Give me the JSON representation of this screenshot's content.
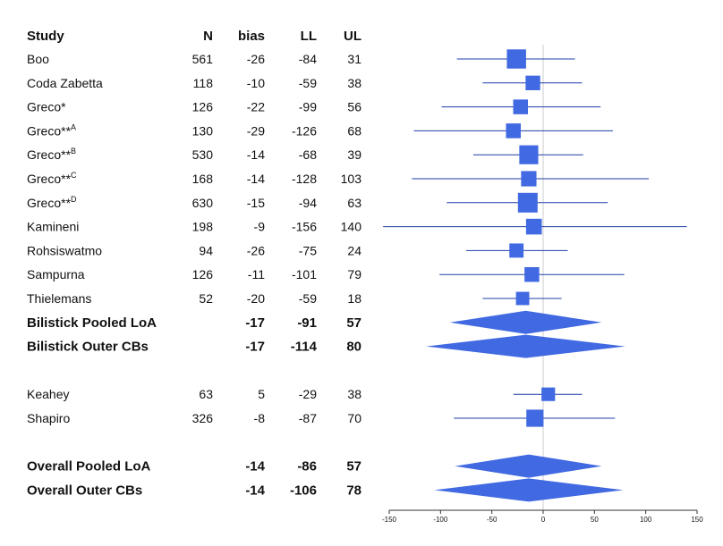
{
  "chart_data": {
    "type": "forest",
    "title": "",
    "xlabel": "",
    "ylabel": "",
    "xlim": [
      -150,
      150
    ],
    "xticks": [
      "-150",
      "-100",
      "-50",
      "0",
      "50",
      "100",
      "150"
    ],
    "reference_line": 0,
    "colors": {
      "marker": "#4169e1",
      "line": "#1f3fa8",
      "ref": "#cccccc"
    },
    "headers": {
      "study": "Study",
      "n": "N",
      "bias": "bias",
      "ll": "LL",
      "ul": "UL"
    },
    "rows": [
      {
        "label": "Boo",
        "sup": "",
        "n": "561",
        "bias": "-26",
        "ll": "-84",
        "ul": "31",
        "kind": "study",
        "pooled_ll": -84,
        "pooled_ul": 31,
        "ci_ll": -84,
        "ci_ul": 31,
        "weight": 561
      },
      {
        "label": "Coda Zabetta",
        "sup": "",
        "n": "118",
        "bias": "-10",
        "ll": "-59",
        "ul": "38",
        "kind": "study",
        "weight": 118
      },
      {
        "label": "Greco*",
        "sup": "",
        "n": "126",
        "bias": "-22",
        "ll": "-99",
        "ul": "56",
        "kind": "study",
        "weight": 126
      },
      {
        "label": "Greco**",
        "sup": "A",
        "n": "130",
        "bias": "-29",
        "ll": "-126",
        "ul": "68",
        "kind": "study",
        "weight": 130
      },
      {
        "label": "Greco**",
        "sup": "B",
        "n": "530",
        "bias": "-14",
        "ll": "-68",
        "ul": "39",
        "kind": "study",
        "weight": 530
      },
      {
        "label": "Greco**",
        "sup": "C",
        "n": "168",
        "bias": "-14",
        "ll": "-128",
        "ul": "103",
        "kind": "study",
        "weight": 168
      },
      {
        "label": "Greco**",
        "sup": "D",
        "n": "630",
        "bias": "-15",
        "ll": "-94",
        "ul": "63",
        "kind": "study",
        "weight": 630
      },
      {
        "label": "Kamineni",
        "sup": "",
        "n": "198",
        "bias": "-9",
        "ll": "-156",
        "ul": "140",
        "kind": "study",
        "weight": 198
      },
      {
        "label": "Rohsiswatmo",
        "sup": "",
        "n": "94",
        "bias": "-26",
        "ll": "-75",
        "ul": "24",
        "kind": "study",
        "weight": 94
      },
      {
        "label": "Sampurna",
        "sup": "",
        "n": "126",
        "bias": "-11",
        "ll": "-101",
        "ul": "79",
        "kind": "study",
        "weight": 126
      },
      {
        "label": "Thielemans",
        "sup": "",
        "n": "52",
        "bias": "-20",
        "ll": "-59",
        "ul": "18",
        "kind": "study",
        "weight": 52
      },
      {
        "label": "Bilistick Pooled LoA",
        "sup": "",
        "n": "",
        "bias": "-17",
        "ll": "-91",
        "ul": "57",
        "kind": "pooled"
      },
      {
        "label": "Bilistick  Outer CBs",
        "sup": "",
        "n": "",
        "bias": "-17",
        "ll": "-114",
        "ul": "80",
        "kind": "pooled"
      },
      {
        "label": "",
        "sup": "",
        "n": "",
        "bias": "",
        "ll": "",
        "ul": "",
        "kind": "spacer"
      },
      {
        "label": "Keahey",
        "sup": "",
        "n": "63",
        "bias": "5",
        "ll": "-29",
        "ul": "38",
        "kind": "study",
        "weight": 63
      },
      {
        "label": "Shapiro",
        "sup": "",
        "n": "326",
        "bias": "-8",
        "ll": "-87",
        "ul": "70",
        "kind": "study",
        "weight": 326
      },
      {
        "label": "",
        "sup": "",
        "n": "",
        "bias": "",
        "ll": "",
        "ul": "",
        "kind": "spacer"
      },
      {
        "label": "Overall Pooled LoA",
        "sup": "",
        "n": "",
        "bias": "-14",
        "ll": "-86",
        "ul": "57",
        "kind": "pooled"
      },
      {
        "label": "Overall Outer CBs",
        "sup": "",
        "n": "",
        "bias": "-14",
        "ll": "-106",
        "ul": "78",
        "kind": "pooled"
      }
    ]
  }
}
